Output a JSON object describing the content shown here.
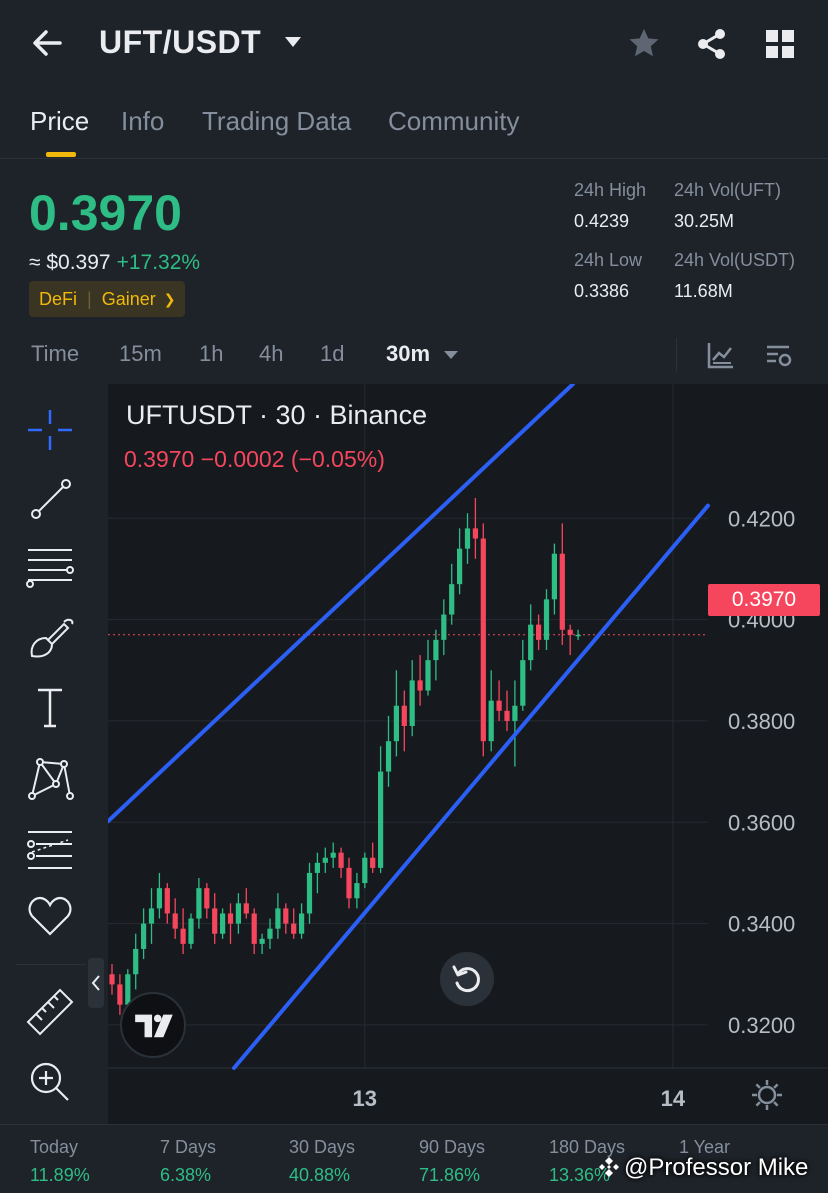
{
  "header": {
    "pair": "UFT/USDT"
  },
  "tabs": [
    "Price",
    "Info",
    "Trading Data",
    "Community"
  ],
  "price": {
    "last": "0.3970",
    "usd": "≈ $0.397",
    "change": "+17.32%",
    "tags": [
      "DeFi",
      "Gainer"
    ],
    "stats": {
      "high_label": "24h High",
      "high_value": "0.4239",
      "low_label": "24h Low",
      "low_value": "0.3386",
      "vol_base_label": "24h Vol(UFT)",
      "vol_base_value": "30.25M",
      "vol_quote_label": "24h Vol(USDT)",
      "vol_quote_value": "11.68M"
    }
  },
  "timeframes": [
    "Time",
    "15m",
    "1h",
    "4h",
    "1d",
    "30m"
  ],
  "chart": {
    "title": "UFTUSDT · 30 · Binance",
    "legend": "0.3970  −0.0002 (−0.05%)",
    "price_tag": "0.3970",
    "y_labels": [
      "0.4200",
      "0.4000",
      "0.3800",
      "0.3600",
      "0.3400",
      "0.3200"
    ],
    "x_labels": [
      "13",
      "14"
    ]
  },
  "chart_data": {
    "type": "candlestick",
    "title": "UFTUSDT · 30 · Binance",
    "ylim": [
      0.3115,
      0.4465
    ],
    "y_ticks": [
      0.32,
      0.34,
      0.36,
      0.38,
      0.4,
      0.42
    ],
    "current_price": 0.397,
    "colors": {
      "up": "#2ebd85",
      "down": "#f6465d",
      "trendline": "#2b5ff5"
    },
    "candles": [
      [
        0.33,
        0.332,
        0.326,
        0.328
      ],
      [
        0.328,
        0.33,
        0.322,
        0.324
      ],
      [
        0.324,
        0.331,
        0.321,
        0.33
      ],
      [
        0.33,
        0.338,
        0.327,
        0.335
      ],
      [
        0.335,
        0.343,
        0.333,
        0.34
      ],
      [
        0.34,
        0.347,
        0.336,
        0.343
      ],
      [
        0.343,
        0.35,
        0.341,
        0.347
      ],
      [
        0.347,
        0.348,
        0.34,
        0.342
      ],
      [
        0.342,
        0.345,
        0.337,
        0.339
      ],
      [
        0.339,
        0.343,
        0.334,
        0.336
      ],
      [
        0.336,
        0.342,
        0.335,
        0.341
      ],
      [
        0.341,
        0.349,
        0.339,
        0.347
      ],
      [
        0.347,
        0.348,
        0.341,
        0.343
      ],
      [
        0.343,
        0.346,
        0.336,
        0.338
      ],
      [
        0.338,
        0.343,
        0.337,
        0.342
      ],
      [
        0.342,
        0.344,
        0.336,
        0.34
      ],
      [
        0.34,
        0.346,
        0.338,
        0.344
      ],
      [
        0.344,
        0.347,
        0.341,
        0.342
      ],
      [
        0.342,
        0.343,
        0.334,
        0.336
      ],
      [
        0.336,
        0.338,
        0.334,
        0.337
      ],
      [
        0.337,
        0.341,
        0.335,
        0.339
      ],
      [
        0.339,
        0.346,
        0.337,
        0.343
      ],
      [
        0.343,
        0.344,
        0.338,
        0.34
      ],
      [
        0.34,
        0.343,
        0.337,
        0.338
      ],
      [
        0.338,
        0.344,
        0.337,
        0.342
      ],
      [
        0.342,
        0.352,
        0.34,
        0.35
      ],
      [
        0.35,
        0.354,
        0.346,
        0.352
      ],
      [
        0.352,
        0.355,
        0.35,
        0.353
      ],
      [
        0.353,
        0.356,
        0.351,
        0.354
      ],
      [
        0.354,
        0.355,
        0.349,
        0.351
      ],
      [
        0.351,
        0.353,
        0.343,
        0.345
      ],
      [
        0.345,
        0.35,
        0.343,
        0.348
      ],
      [
        0.348,
        0.354,
        0.347,
        0.353
      ],
      [
        0.353,
        0.356,
        0.35,
        0.351
      ],
      [
        0.351,
        0.375,
        0.35,
        0.37
      ],
      [
        0.37,
        0.381,
        0.367,
        0.376
      ],
      [
        0.376,
        0.39,
        0.373,
        0.383
      ],
      [
        0.383,
        0.386,
        0.374,
        0.379
      ],
      [
        0.379,
        0.392,
        0.377,
        0.388
      ],
      [
        0.388,
        0.393,
        0.383,
        0.386
      ],
      [
        0.386,
        0.396,
        0.385,
        0.392
      ],
      [
        0.392,
        0.398,
        0.388,
        0.396
      ],
      [
        0.396,
        0.404,
        0.393,
        0.401
      ],
      [
        0.401,
        0.411,
        0.399,
        0.407
      ],
      [
        0.407,
        0.418,
        0.405,
        0.414
      ],
      [
        0.414,
        0.421,
        0.411,
        0.418
      ],
      [
        0.418,
        0.424,
        0.412,
        0.416
      ],
      [
        0.416,
        0.419,
        0.373,
        0.376
      ],
      [
        0.376,
        0.39,
        0.374,
        0.384
      ],
      [
        0.384,
        0.388,
        0.38,
        0.382
      ],
      [
        0.382,
        0.386,
        0.378,
        0.38
      ],
      [
        0.38,
        0.388,
        0.371,
        0.383
      ],
      [
        0.383,
        0.396,
        0.382,
        0.392
      ],
      [
        0.392,
        0.403,
        0.39,
        0.399
      ],
      [
        0.399,
        0.401,
        0.394,
        0.396
      ],
      [
        0.396,
        0.406,
        0.394,
        0.404
      ],
      [
        0.404,
        0.415,
        0.401,
        0.413
      ],
      [
        0.413,
        0.419,
        0.395,
        0.398
      ],
      [
        0.398,
        0.399,
        0.393,
        0.397
      ],
      [
        0.397,
        0.398,
        0.396,
        0.397
      ]
    ],
    "channel": {
      "upper": [
        [
          0,
          0.3602
        ],
        [
          465,
          0.4465
        ]
      ],
      "lower": [
        [
          126,
          0.3115
        ],
        [
          600,
          0.4225
        ]
      ]
    },
    "x_labels": [
      {
        "label": "13",
        "index": 32
      },
      {
        "label": "14",
        "index": 71
      }
    ]
  },
  "performance": [
    {
      "label": "Today",
      "value": "11.89%"
    },
    {
      "label": "7 Days",
      "value": "6.38%"
    },
    {
      "label": "30 Days",
      "value": "40.88%"
    },
    {
      "label": "90 Days",
      "value": "71.86%"
    },
    {
      "label": "180 Days",
      "value": "13.36%"
    },
    {
      "label": "1 Year",
      "value": ""
    }
  ],
  "watermark": "@Professor Mike",
  "icons": [
    "back-arrow-icon",
    "caret-down-icon",
    "star-icon",
    "share-icon",
    "grid-icon",
    "indicator-icon",
    "chart-settings-icon",
    "crosshair-icon",
    "trend-line-icon",
    "fib-lines-icon",
    "brush-icon",
    "text-tool-icon",
    "pattern-icon",
    "forecast-icon",
    "heart-icon",
    "ruler-icon",
    "zoom-in-icon",
    "reset-icon",
    "gear-icon"
  ]
}
